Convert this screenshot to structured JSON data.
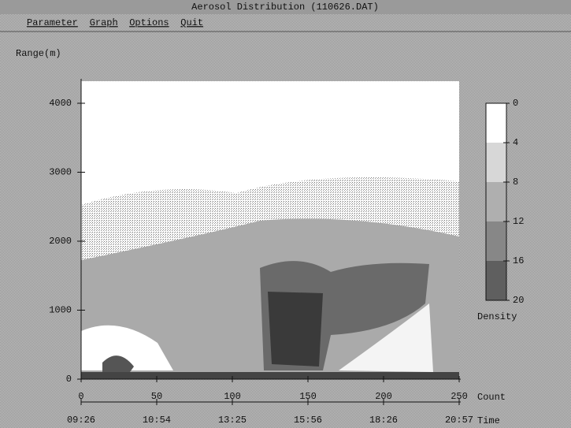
{
  "window": {
    "title": "Aerosol Distribution (110626.DAT)"
  },
  "menu": {
    "items": [
      "Parameter",
      "Graph",
      "Options",
      "Quit"
    ]
  },
  "plot": {
    "y_label": "Range(m)",
    "ylim": [
      0,
      4320
    ],
    "yticks": [
      0,
      1000,
      2000,
      3000,
      4000
    ],
    "count_label": "Count",
    "count_lim": [
      0,
      250
    ],
    "count_ticks": [
      0,
      50,
      100,
      150,
      200,
      250
    ],
    "time_label": "Time",
    "time_ticks": [
      "09:26",
      "10:54",
      "13:25",
      "15:56",
      "18:26",
      "20:57"
    ]
  },
  "colorbar": {
    "label": "Density",
    "lim": [
      0,
      20
    ],
    "ticks": [
      0,
      4,
      8,
      12,
      16,
      20
    ]
  }
}
